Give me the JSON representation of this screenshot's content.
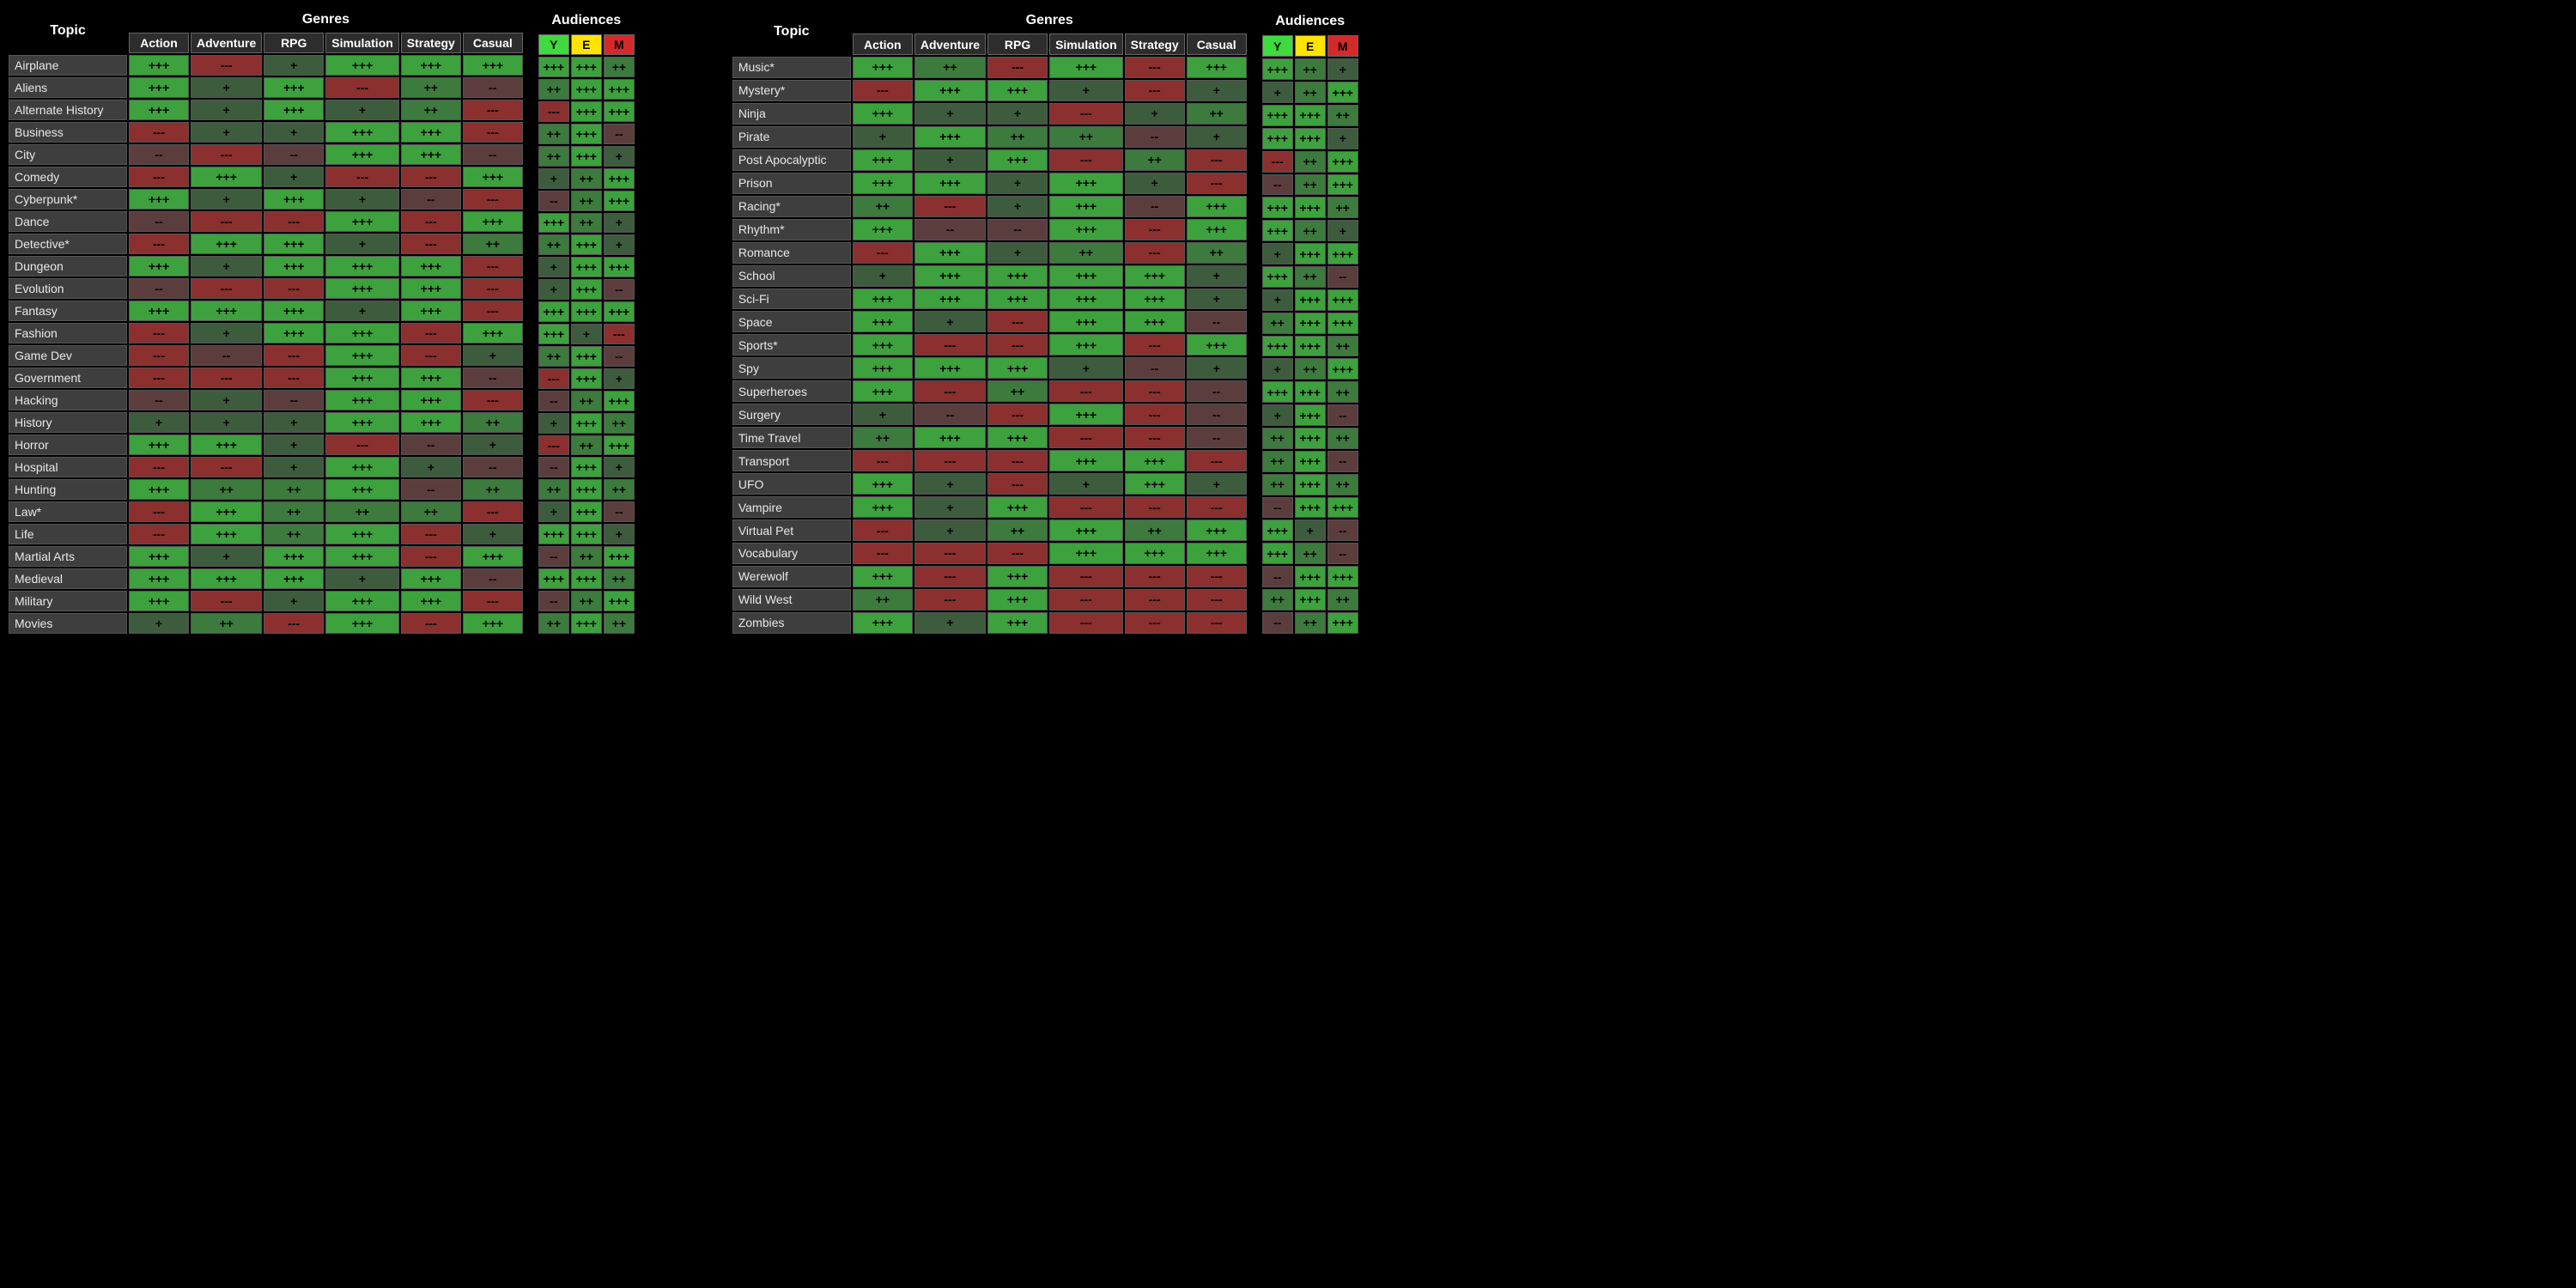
{
  "colors": {
    "bg": "#000000",
    "cell_bg": "#3a3a3a",
    "topic_bg": "#3e3e3e",
    "border": "#555555",
    "ratings": {
      "+++": "#3da13d",
      "++": "#3d7a3d",
      "+": "#3d5c3d",
      "--": "#5c3d3d",
      "---": "#8b2f2f"
    },
    "aud_Y": "#3eda3e",
    "aud_E": "#ffe400",
    "aud_M": "#d42a2a"
  },
  "rating_class": {
    "+++": "r3",
    "++": "r2",
    "+": "r1",
    "--": "rm1",
    "---": "rm3"
  },
  "headers": {
    "topic": "Topic",
    "genres_super": "Genres",
    "audiences_super": "Audiences",
    "genres": [
      "Action",
      "Adventure",
      "RPG",
      "Simulation",
      "Strategy",
      "Casual"
    ],
    "audiences": [
      "Y",
      "E",
      "M"
    ]
  },
  "tables": [
    {
      "rows": [
        {
          "topic": "Airplane",
          "g": [
            "+++",
            "---",
            "+",
            "+++",
            "+++",
            "+++"
          ],
          "a": [
            "+++",
            "+++",
            "++"
          ]
        },
        {
          "topic": "Aliens",
          "g": [
            "+++",
            "+",
            "+++",
            "---",
            "++",
            "--"
          ],
          "a": [
            "++",
            "+++",
            "+++"
          ]
        },
        {
          "topic": "Alternate History",
          "g": [
            "+++",
            "+",
            "+++",
            "+",
            "++",
            "---"
          ],
          "a": [
            "---",
            "+++",
            "+++"
          ]
        },
        {
          "topic": "Business",
          "g": [
            "---",
            "+",
            "+",
            "+++",
            "+++",
            "---"
          ],
          "a": [
            "++",
            "+++",
            "--"
          ]
        },
        {
          "topic": "City",
          "g": [
            "--",
            "---",
            "--",
            "+++",
            "+++",
            "--"
          ],
          "a": [
            "++",
            "+++",
            "+"
          ]
        },
        {
          "topic": "Comedy",
          "g": [
            "---",
            "+++",
            "+",
            "---",
            "---",
            "+++"
          ],
          "a": [
            "+",
            "++",
            "+++"
          ]
        },
        {
          "topic": "Cyberpunk*",
          "g": [
            "+++",
            "+",
            "+++",
            "+",
            "--",
            "---"
          ],
          "a": [
            "--",
            "++",
            "+++"
          ]
        },
        {
          "topic": "Dance",
          "g": [
            "--",
            "---",
            "---",
            "+++",
            "---",
            "+++"
          ],
          "a": [
            "+++",
            "++",
            "+"
          ]
        },
        {
          "topic": "Detective*",
          "g": [
            "---",
            "+++",
            "+++",
            "+",
            "---",
            "++"
          ],
          "a": [
            "++",
            "+++",
            "+"
          ]
        },
        {
          "topic": "Dungeon",
          "g": [
            "+++",
            "+",
            "+++",
            "+++",
            "+++",
            "---"
          ],
          "a": [
            "+",
            "+++",
            "+++"
          ]
        },
        {
          "topic": "Evolution",
          "g": [
            "--",
            "---",
            "---",
            "+++",
            "+++",
            "---"
          ],
          "a": [
            "+",
            "+++",
            "--"
          ]
        },
        {
          "topic": "Fantasy",
          "g": [
            "+++",
            "+++",
            "+++",
            "+",
            "+++",
            "---"
          ],
          "a": [
            "+++",
            "+++",
            "+++"
          ]
        },
        {
          "topic": "Fashion",
          "g": [
            "---",
            "+",
            "+++",
            "+++",
            "---",
            "+++"
          ],
          "a": [
            "+++",
            "+",
            "---"
          ]
        },
        {
          "topic": "Game Dev",
          "g": [
            "---",
            "--",
            "---",
            "+++",
            "---",
            "+"
          ],
          "a": [
            "++",
            "+++",
            "--"
          ]
        },
        {
          "topic": "Government",
          "g": [
            "---",
            "---",
            "---",
            "+++",
            "+++",
            "--"
          ],
          "a": [
            "---",
            "+++",
            "+"
          ]
        },
        {
          "topic": "Hacking",
          "g": [
            "--",
            "+",
            "--",
            "+++",
            "+++",
            "---"
          ],
          "a": [
            "--",
            "++",
            "+++"
          ]
        },
        {
          "topic": "History",
          "g": [
            "+",
            "+",
            "+",
            "+++",
            "+++",
            "++"
          ],
          "a": [
            "+",
            "+++",
            "++"
          ]
        },
        {
          "topic": "Horror",
          "g": [
            "+++",
            "+++",
            "+",
            "---",
            "--",
            "+"
          ],
          "a": [
            "---",
            "++",
            "+++"
          ]
        },
        {
          "topic": "Hospital",
          "g": [
            "---",
            "---",
            "+",
            "+++",
            "+",
            "--"
          ],
          "a": [
            "--",
            "+++",
            "+"
          ]
        },
        {
          "topic": "Hunting",
          "g": [
            "+++",
            "++",
            "++",
            "+++",
            "--",
            "++"
          ],
          "a": [
            "++",
            "+++",
            "++"
          ]
        },
        {
          "topic": "Law*",
          "g": [
            "---",
            "+++",
            "++",
            "++",
            "++",
            "---"
          ],
          "a": [
            "+",
            "+++",
            "--"
          ]
        },
        {
          "topic": "Life",
          "g": [
            "---",
            "+++",
            "++",
            "+++",
            "---",
            "+"
          ],
          "a": [
            "+++",
            "+++",
            "+"
          ]
        },
        {
          "topic": "Martial Arts",
          "g": [
            "+++",
            "+",
            "+++",
            "+++",
            "---",
            "+++"
          ],
          "a": [
            "--",
            "++",
            "+++"
          ]
        },
        {
          "topic": "Medieval",
          "g": [
            "+++",
            "+++",
            "+++",
            "+",
            "+++",
            "--"
          ],
          "a": [
            "+++",
            "+++",
            "++"
          ]
        },
        {
          "topic": "Military",
          "g": [
            "+++",
            "---",
            "+",
            "+++",
            "+++",
            "---"
          ],
          "a": [
            "--",
            "++",
            "+++"
          ]
        },
        {
          "topic": "Movies",
          "g": [
            "+",
            "++",
            "---",
            "+++",
            "---",
            "+++"
          ],
          "a": [
            "++",
            "+++",
            "++"
          ]
        }
      ]
    },
    {
      "rows": [
        {
          "topic": "Music*",
          "g": [
            "+++",
            "++",
            "---",
            "+++",
            "---",
            "+++"
          ],
          "a": [
            "+++",
            "++",
            "+"
          ]
        },
        {
          "topic": "Mystery*",
          "g": [
            "---",
            "+++",
            "+++",
            "+",
            "---",
            "+"
          ],
          "a": [
            "+",
            "++",
            "+++"
          ]
        },
        {
          "topic": "Ninja",
          "g": [
            "+++",
            "+",
            "+",
            "---",
            "+",
            "++"
          ],
          "a": [
            "+++",
            "+++",
            "++"
          ]
        },
        {
          "topic": "Pirate",
          "g": [
            "+",
            "+++",
            "++",
            "++",
            "--",
            "+"
          ],
          "a": [
            "+++",
            "+++",
            "+"
          ]
        },
        {
          "topic": "Post Apocalyptic",
          "g": [
            "+++",
            "+",
            "+++",
            "---",
            "++",
            "---"
          ],
          "a": [
            "---",
            "++",
            "+++"
          ]
        },
        {
          "topic": "Prison",
          "g": [
            "+++",
            "+++",
            "+",
            "+++",
            "+",
            "---"
          ],
          "a": [
            "--",
            "++",
            "+++"
          ]
        },
        {
          "topic": "Racing*",
          "g": [
            "++",
            "---",
            "+",
            "+++",
            "--",
            "+++"
          ],
          "a": [
            "+++",
            "+++",
            "++"
          ]
        },
        {
          "topic": "Rhythm*",
          "g": [
            "+++",
            "--",
            "--",
            "+++",
            "---",
            "+++"
          ],
          "a": [
            "+++",
            "++",
            "+"
          ]
        },
        {
          "topic": "Romance",
          "g": [
            "---",
            "+++",
            "+",
            "++",
            "---",
            "++"
          ],
          "a": [
            "+",
            "+++",
            "+++"
          ]
        },
        {
          "topic": "School",
          "g": [
            "+",
            "+++",
            "+++",
            "+++",
            "+++",
            "+"
          ],
          "a": [
            "+++",
            "++",
            "--"
          ]
        },
        {
          "topic": "Sci-Fi",
          "g": [
            "+++",
            "+++",
            "+++",
            "+++",
            "+++",
            "+"
          ],
          "a": [
            "+",
            "+++",
            "+++"
          ]
        },
        {
          "topic": "Space",
          "g": [
            "+++",
            "+",
            "---",
            "+++",
            "+++",
            "--"
          ],
          "a": [
            "++",
            "+++",
            "+++"
          ]
        },
        {
          "topic": "Sports*",
          "g": [
            "+++",
            "---",
            "---",
            "+++",
            "---",
            "+++"
          ],
          "a": [
            "+++",
            "+++",
            "++"
          ]
        },
        {
          "topic": "Spy",
          "g": [
            "+++",
            "+++",
            "+++",
            "+",
            "--",
            "+"
          ],
          "a": [
            "+",
            "++",
            "+++"
          ]
        },
        {
          "topic": "Superheroes",
          "g": [
            "+++",
            "---",
            "++",
            "---",
            "---",
            "--"
          ],
          "a": [
            "+++",
            "+++",
            "++"
          ]
        },
        {
          "topic": "Surgery",
          "g": [
            "+",
            "--",
            "---",
            "+++",
            "---",
            "--"
          ],
          "a": [
            "+",
            "+++",
            "--"
          ]
        },
        {
          "topic": "Time Travel",
          "g": [
            "++",
            "+++",
            "+++",
            "---",
            "---",
            "--"
          ],
          "a": [
            "++",
            "+++",
            "++"
          ]
        },
        {
          "topic": "Transport",
          "g": [
            "---",
            "---",
            "---",
            "+++",
            "+++",
            "---"
          ],
          "a": [
            "++",
            "+++",
            "--"
          ]
        },
        {
          "topic": "UFO",
          "g": [
            "+++",
            "+",
            "---",
            "+",
            "+++",
            "+"
          ],
          "a": [
            "++",
            "+++",
            "++"
          ]
        },
        {
          "topic": "Vampire",
          "g": [
            "+++",
            "+",
            "+++",
            "---",
            "---",
            "---"
          ],
          "a": [
            "--",
            "+++",
            "+++"
          ]
        },
        {
          "topic": "Virtual Pet",
          "g": [
            "---",
            "+",
            "++",
            "+++",
            "++",
            "+++"
          ],
          "a": [
            "+++",
            "+",
            "--"
          ]
        },
        {
          "topic": "Vocabulary",
          "g": [
            "---",
            "---",
            "---",
            "+++",
            "+++",
            "+++"
          ],
          "a": [
            "+++",
            "++",
            "--"
          ]
        },
        {
          "topic": "Werewolf",
          "g": [
            "+++",
            "---",
            "+++",
            "---",
            "---",
            "---"
          ],
          "a": [
            "--",
            "+++",
            "+++"
          ]
        },
        {
          "topic": "Wild West",
          "g": [
            "++",
            "---",
            "+++",
            "---",
            "---",
            "---"
          ],
          "a": [
            "++",
            "+++",
            "++"
          ]
        },
        {
          "topic": "Zombies",
          "g": [
            "+++",
            "+",
            "+++",
            "---",
            "---",
            "---"
          ],
          "a": [
            "--",
            "++",
            "+++"
          ]
        }
      ]
    }
  ]
}
